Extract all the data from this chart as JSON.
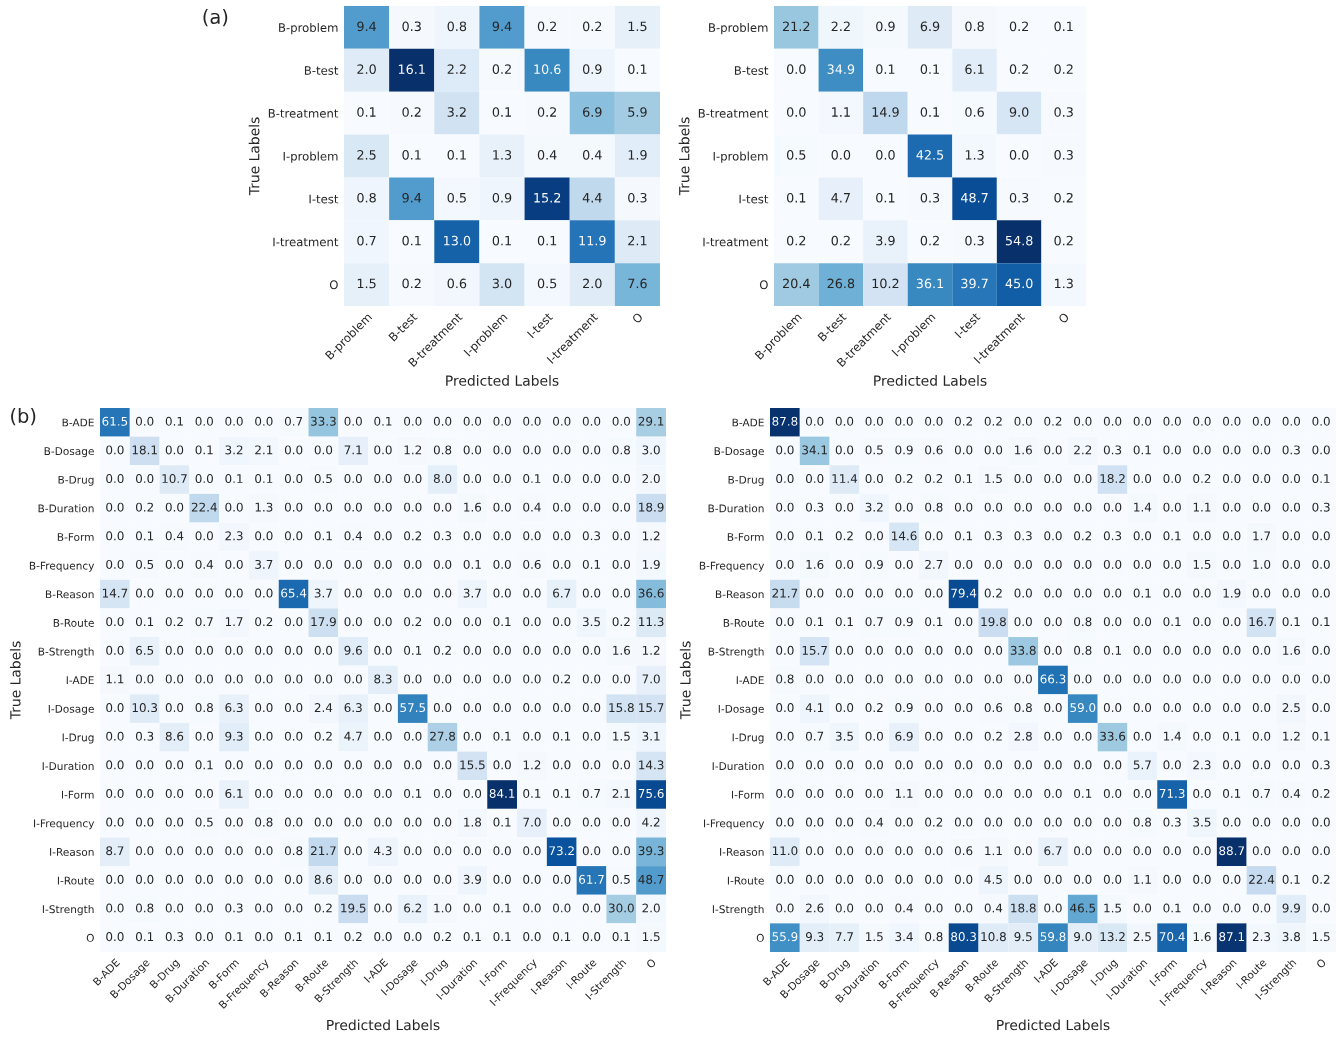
{
  "chart_data": [
    {
      "type": "heatmap",
      "title": "(a)",
      "xlabel": "Predicted Labels",
      "ylabel": "True Labels",
      "categories": [
        "B-problem",
        "B-test",
        "B-treatment",
        "I-problem",
        "I-test",
        "I-treatment",
        "O"
      ],
      "y_categories": [
        "B-problem",
        "B-test",
        "B-treatment",
        "I-problem",
        "I-test",
        "I-treatment",
        "O"
      ],
      "data_labels": true,
      "cell_labels": [
        [
          "9.4",
          "0.3",
          "0.8",
          "9.4",
          "0.2",
          "0.2",
          "1.5"
        ],
        [
          "2.0",
          "16.1",
          "2.2",
          "0.2",
          "10.6",
          "0.9",
          "0.1"
        ],
        [
          "0.1",
          "0.2",
          "3.2",
          "0.1",
          "0.2",
          "6.9",
          "5.9"
        ],
        [
          "2.5",
          "0.1",
          "0.1",
          "1.3",
          "0.4",
          "0.4",
          "1.9"
        ],
        [
          "0.8",
          "9.4",
          "0.5",
          "0.9",
          "15.2",
          "4.4",
          "0.3"
        ],
        [
          "0.7",
          "0.1",
          "13.0",
          "0.1",
          "0.1",
          "11.9",
          "2.1"
        ],
        [
          "1.5",
          "0.2",
          "0.6",
          "3.0",
          "0.5",
          "2.0",
          "7.6"
        ]
      ],
      "cells": [
        [
          9.4,
          0.3,
          0.8,
          9.4,
          0.2,
          0.2,
          1.5
        ],
        [
          2.0,
          16.1,
          2.2,
          0.2,
          10.6,
          0.9,
          0.1
        ],
        [
          0.1,
          0.2,
          3.2,
          0.1,
          0.2,
          6.9,
          5.9
        ],
        [
          2.5,
          0.1,
          0.1,
          1.3,
          0.4,
          0.4,
          1.9
        ],
        [
          0.8,
          9.4,
          0.5,
          0.9,
          15.2,
          4.4,
          0.3
        ],
        [
          0.7,
          0.1,
          13.0,
          0.1,
          0.1,
          11.9,
          2.1
        ],
        [
          1.5,
          0.2,
          0.6,
          3.0,
          0.5,
          2.0,
          7.6
        ]
      ]
    },
    {
      "type": "heatmap",
      "xlabel": "Predicted Labels",
      "ylabel": "True Labels",
      "categories": [
        "B-problem",
        "B-test",
        "B-treatment",
        "I-problem",
        "I-test",
        "I-treatment",
        "O"
      ],
      "y_categories": [
        "B-problem",
        "B-test",
        "B-treatment",
        "I-problem",
        "I-test",
        "I-treatment",
        "O"
      ],
      "data_labels": true,
      "cell_labels": [
        [
          "21.2",
          "2.2",
          "0.9",
          "6.9",
          "0.8",
          "0.2",
          "0.1"
        ],
        [
          "0.0",
          "34.9",
          "0.1",
          "0.1",
          "6.1",
          "0.2",
          "0.2"
        ],
        [
          "0.0",
          "1.1",
          "14.9",
          "0.1",
          "0.6",
          "9.0",
          "0.3"
        ],
        [
          "0.5",
          "0.0",
          "0.0",
          "42.5",
          "1.3",
          "0.0",
          "0.3"
        ],
        [
          "0.1",
          "4.7",
          "0.1",
          "0.3",
          "48.7",
          "0.3",
          "0.2"
        ],
        [
          "0.2",
          "0.2",
          "3.9",
          "0.2",
          "0.3",
          "54.8",
          "0.2"
        ],
        [
          "20.4",
          "26.8",
          "10.2",
          "36.1",
          "39.7",
          "45.0",
          "1.3"
        ]
      ],
      "cells": [
        [
          21.2,
          2.2,
          0.9,
          6.9,
          0.8,
          0.2,
          0.1
        ],
        [
          0.0,
          34.9,
          0.1,
          0.1,
          6.1,
          0.2,
          0.2
        ],
        [
          0.0,
          1.1,
          14.9,
          0.1,
          0.6,
          9.0,
          0.3
        ],
        [
          0.5,
          0.0,
          0.0,
          42.5,
          1.3,
          0.0,
          0.3
        ],
        [
          0.1,
          4.7,
          0.1,
          0.3,
          48.7,
          0.3,
          0.2
        ],
        [
          0.2,
          0.2,
          3.9,
          0.2,
          0.3,
          54.8,
          0.2
        ],
        [
          20.4,
          26.8,
          10.2,
          36.1,
          39.7,
          45.0,
          1.3
        ]
      ]
    },
    {
      "type": "heatmap",
      "title": "(b)",
      "xlabel": "Predicted Labels",
      "ylabel": "True Labels",
      "categories": [
        "B-ADE",
        "B-Dosage",
        "B-Drug",
        "B-Duration",
        "B-Form",
        "B-Frequency",
        "B-Reason",
        "B-Route",
        "B-Strength",
        "I-ADE",
        "I-Dosage",
        "I-Drug",
        "I-Duration",
        "I-Form",
        "I-Frequency",
        "I-Reason",
        "I-Route",
        "I-Strength",
        "O"
      ],
      "y_categories": [
        "B-ADE",
        "B-Dosage",
        "B-Drug",
        "B-Duration",
        "B-Form",
        "B-Frequency",
        "B-Reason",
        "B-Route",
        "B-Strength",
        "I-ADE",
        "I-Dosage",
        "I-Drug",
        "I-Duration",
        "I-Form",
        "I-Frequency",
        "I-Reason",
        "I-Route",
        "I-Strength",
        "O"
      ],
      "data_labels": true,
      "cell_labels": [
        [
          "61.5",
          "0.0",
          "0.1",
          "0.0",
          "0.0",
          "0.0",
          "0.7",
          "33.3",
          "0.0",
          "0.1",
          "0.0",
          "0.0",
          "0.0",
          "0.0",
          "0.0",
          "0.0",
          "0.0",
          "0.0",
          "29.1"
        ],
        [
          "0.0",
          "18.1",
          "0.0",
          "0.1",
          "3.2",
          "2.1",
          "0.0",
          "0.0",
          "7.1",
          "0.0",
          "1.2",
          "0.8",
          "0.0",
          "0.0",
          "0.0",
          "0.0",
          "0.0",
          "0.8",
          "3.0"
        ],
        [
          "0.0",
          "0.0",
          "10.7",
          "0.0",
          "0.1",
          "0.1",
          "0.0",
          "0.5",
          "0.0",
          "0.0",
          "0.0",
          "8.0",
          "0.0",
          "0.0",
          "0.1",
          "0.0",
          "0.0",
          "0.0",
          "2.0"
        ],
        [
          "0.0",
          "0.2",
          "0.0",
          "22.4",
          "0.0",
          "1.3",
          "0.0",
          "0.0",
          "0.0",
          "0.0",
          "0.0",
          "0.0",
          "1.6",
          "0.0",
          "0.4",
          "0.0",
          "0.0",
          "0.0",
          "18.9"
        ],
        [
          "0.0",
          "0.1",
          "0.4",
          "0.0",
          "2.3",
          "0.0",
          "0.0",
          "0.1",
          "0.4",
          "0.0",
          "0.2",
          "0.3",
          "0.0",
          "0.0",
          "0.0",
          "0.0",
          "0.3",
          "0.0",
          "1.2"
        ],
        [
          "0.0",
          "0.5",
          "0.0",
          "0.4",
          "0.0",
          "3.7",
          "0.0",
          "0.0",
          "0.0",
          "0.0",
          "0.0",
          "0.0",
          "0.1",
          "0.0",
          "0.6",
          "0.0",
          "0.1",
          "0.0",
          "1.9"
        ],
        [
          "14.7",
          "0.0",
          "0.0",
          "0.0",
          "0.0",
          "0.0",
          "65.4",
          "3.7",
          "0.0",
          "0.0",
          "0.0",
          "0.0",
          "3.7",
          "0.0",
          "0.0",
          "6.7",
          "0.0",
          "0.0",
          "36.6"
        ],
        [
          "0.0",
          "0.1",
          "0.2",
          "0.7",
          "1.7",
          "0.2",
          "0.0",
          "17.9",
          "0.0",
          "0.0",
          "0.2",
          "0.0",
          "0.0",
          "0.1",
          "0.0",
          "0.0",
          "3.5",
          "0.2",
          "11.3"
        ],
        [
          "0.0",
          "6.5",
          "0.0",
          "0.0",
          "0.0",
          "0.0",
          "0.0",
          "0.0",
          "9.6",
          "0.0",
          "0.1",
          "0.2",
          "0.0",
          "0.0",
          "0.0",
          "0.0",
          "0.0",
          "1.6",
          "1.2"
        ],
        [
          "1.1",
          "0.0",
          "0.0",
          "0.0",
          "0.0",
          "0.0",
          "0.0",
          "0.0",
          "0.0",
          "8.3",
          "0.0",
          "0.0",
          "0.0",
          "0.0",
          "0.0",
          "0.2",
          "0.0",
          "0.0",
          "7.0"
        ],
        [
          "0.0",
          "10.3",
          "0.0",
          "0.8",
          "6.3",
          "0.0",
          "0.0",
          "2.4",
          "6.3",
          "0.0",
          "57.5",
          "0.0",
          "0.0",
          "0.0",
          "0.0",
          "0.0",
          "0.0",
          "15.8",
          "15.7"
        ],
        [
          "0.0",
          "0.3",
          "8.6",
          "0.0",
          "9.3",
          "0.0",
          "0.0",
          "0.2",
          "4.7",
          "0.0",
          "0.0",
          "27.8",
          "0.0",
          "0.1",
          "0.0",
          "0.1",
          "0.0",
          "1.5",
          "3.1"
        ],
        [
          "0.0",
          "0.0",
          "0.0",
          "0.1",
          "0.0",
          "0.0",
          "0.0",
          "0.0",
          "0.0",
          "0.0",
          "0.0",
          "0.0",
          "15.5",
          "0.0",
          "1.2",
          "0.0",
          "0.0",
          "0.0",
          "14.3"
        ],
        [
          "0.0",
          "0.0",
          "0.0",
          "0.0",
          "6.1",
          "0.0",
          "0.0",
          "0.0",
          "0.0",
          "0.0",
          "0.1",
          "0.0",
          "0.0",
          "84.1",
          "0.1",
          "0.1",
          "0.7",
          "2.1",
          "75.6"
        ],
        [
          "0.0",
          "0.0",
          "0.0",
          "0.5",
          "0.0",
          "0.8",
          "0.0",
          "0.0",
          "0.0",
          "0.0",
          "0.0",
          "0.0",
          "1.8",
          "0.1",
          "7.0",
          "0.0",
          "0.0",
          "0.0",
          "4.2"
        ],
        [
          "8.7",
          "0.0",
          "0.0",
          "0.0",
          "0.0",
          "0.0",
          "0.8",
          "21.7",
          "0.0",
          "4.3",
          "0.0",
          "0.0",
          "0.0",
          "0.0",
          "0.0",
          "73.2",
          "0.0",
          "0.0",
          "39.3"
        ],
        [
          "0.0",
          "0.0",
          "0.0",
          "0.0",
          "0.0",
          "0.0",
          "0.0",
          "8.6",
          "0.0",
          "0.0",
          "0.0",
          "0.0",
          "3.9",
          "0.0",
          "0.0",
          "0.0",
          "61.7",
          "0.5",
          "48.7"
        ],
        [
          "0.0",
          "0.8",
          "0.0",
          "0.0",
          "0.3",
          "0.0",
          "0.0",
          "0.2",
          "19.5",
          "0.0",
          "6.2",
          "1.0",
          "0.0",
          "0.1",
          "0.0",
          "0.0",
          "0.0",
          "30.0",
          "2.0"
        ],
        [
          "0.0",
          "0.1",
          "0.3",
          "0.0",
          "0.1",
          "0.0",
          "0.1",
          "0.1",
          "0.2",
          "0.0",
          "0.0",
          "0.2",
          "0.1",
          "0.1",
          "0.0",
          "0.1",
          "0.0",
          "0.1",
          "1.5"
        ]
      ],
      "cells": [
        [
          61.5,
          0.0,
          0.1,
          0.0,
          0.0,
          0.0,
          0.7,
          33.3,
          0.0,
          0.1,
          0.0,
          0.0,
          0.0,
          0.0,
          0.0,
          0.0,
          0.0,
          0.0,
          29.1
        ],
        [
          0.0,
          18.1,
          0.0,
          0.1,
          3.2,
          2.1,
          0.0,
          0.0,
          7.1,
          0.0,
          1.2,
          0.8,
          0.0,
          0.0,
          0.0,
          0.0,
          0.0,
          0.8,
          3.0
        ],
        [
          0.0,
          0.0,
          10.7,
          0.0,
          0.1,
          0.1,
          0.0,
          0.5,
          0.0,
          0.0,
          0.0,
          8.0,
          0.0,
          0.0,
          0.1,
          0.0,
          0.0,
          0.0,
          2.0
        ],
        [
          0.0,
          0.2,
          0.0,
          22.4,
          0.0,
          1.3,
          0.0,
          0.0,
          0.0,
          0.0,
          0.0,
          0.0,
          1.6,
          0.0,
          0.4,
          0.0,
          0.0,
          0.0,
          18.9
        ],
        [
          0.0,
          0.1,
          0.4,
          0.0,
          2.3,
          0.0,
          0.0,
          0.1,
          0.4,
          0.0,
          0.2,
          0.3,
          0.0,
          0.0,
          0.0,
          0.0,
          0.3,
          0.0,
          1.2
        ],
        [
          0.0,
          0.5,
          0.0,
          0.4,
          0.0,
          3.7,
          0.0,
          0.0,
          0.0,
          0.0,
          0.0,
          0.0,
          0.1,
          0.0,
          0.6,
          0.0,
          0.1,
          0.0,
          1.9
        ],
        [
          14.7,
          0.0,
          0.0,
          0.0,
          0.0,
          0.0,
          65.4,
          3.7,
          0.0,
          0.0,
          0.0,
          0.0,
          3.7,
          0.0,
          0.0,
          6.7,
          0.0,
          0.0,
          36.6
        ],
        [
          0.0,
          0.1,
          0.2,
          0.7,
          1.7,
          0.2,
          0.0,
          17.9,
          0.0,
          0.0,
          0.2,
          0.0,
          0.0,
          0.1,
          0.0,
          0.0,
          3.5,
          0.2,
          11.3
        ],
        [
          0.0,
          6.5,
          0.0,
          0.0,
          0.0,
          0.0,
          0.0,
          0.0,
          9.6,
          0.0,
          0.1,
          0.2,
          0.0,
          0.0,
          0.0,
          0.0,
          0.0,
          1.6,
          1.2
        ],
        [
          1.1,
          0.0,
          0.0,
          0.0,
          0.0,
          0.0,
          0.0,
          0.0,
          0.0,
          8.3,
          0.0,
          0.0,
          0.0,
          0.0,
          0.0,
          0.2,
          0.0,
          0.0,
          7.0
        ],
        [
          0.0,
          10.3,
          0.0,
          0.8,
          6.3,
          0.0,
          0.0,
          2.4,
          6.3,
          0.0,
          57.5,
          0.0,
          0.0,
          0.0,
          0.0,
          0.0,
          0.0,
          15.8,
          15.7
        ],
        [
          0.0,
          0.3,
          8.6,
          0.0,
          9.3,
          0.0,
          0.0,
          0.2,
          4.7,
          0.0,
          0.0,
          27.8,
          0.0,
          0.1,
          0.0,
          0.1,
          0.0,
          1.5,
          3.1
        ],
        [
          0.0,
          0.0,
          0.0,
          0.1,
          0.0,
          0.0,
          0.0,
          0.0,
          0.0,
          0.0,
          0.0,
          0.0,
          15.5,
          0.0,
          1.2,
          0.0,
          0.0,
          0.0,
          14.3
        ],
        [
          0.0,
          0.0,
          0.0,
          0.0,
          6.1,
          0.0,
          0.0,
          0.0,
          0.0,
          0.0,
          0.1,
          0.0,
          0.0,
          84.1,
          0.1,
          0.1,
          0.7,
          2.1,
          75.6
        ],
        [
          0.0,
          0.0,
          0.0,
          0.5,
          0.0,
          0.8,
          0.0,
          0.0,
          0.0,
          0.0,
          0.0,
          0.0,
          1.8,
          0.1,
          7.0,
          0.0,
          0.0,
          0.0,
          4.2
        ],
        [
          8.7,
          0.0,
          0.0,
          0.0,
          0.0,
          0.0,
          0.8,
          21.7,
          0.0,
          4.3,
          0.0,
          0.0,
          0.0,
          0.0,
          0.0,
          73.2,
          0.0,
          0.0,
          39.3
        ],
        [
          0.0,
          0.0,
          0.0,
          0.0,
          0.0,
          0.0,
          0.0,
          8.6,
          0.0,
          0.0,
          0.0,
          0.0,
          3.9,
          0.0,
          0.0,
          0.0,
          61.7,
          0.5,
          48.7
        ],
        [
          0.0,
          0.8,
          0.0,
          0.0,
          0.3,
          0.0,
          0.0,
          0.2,
          19.5,
          0.0,
          6.2,
          1.0,
          0.0,
          0.1,
          0.0,
          0.0,
          0.0,
          30.0,
          2.0
        ],
        [
          0.0,
          0.1,
          0.3,
          0.0,
          0.1,
          0.0,
          0.1,
          0.1,
          0.2,
          0.0,
          0.0,
          0.2,
          0.1,
          0.1,
          0.0,
          0.1,
          0.0,
          0.1,
          1.5
        ]
      ]
    },
    {
      "type": "heatmap",
      "xlabel": "Predicted Labels",
      "ylabel": "True Labels",
      "categories": [
        "B-ADE",
        "B-Dosage",
        "B-Drug",
        "B-Duration",
        "B-Form",
        "B-Frequency",
        "B-Reason",
        "B-Route",
        "B-Strength",
        "I-ADE",
        "I-Dosage",
        "I-Drug",
        "I-Duration",
        "I-Form",
        "I-Frequency",
        "I-Reason",
        "I-Route",
        "I-Strength",
        "O"
      ],
      "y_categories": [
        "B-ADE",
        "B-Dosage",
        "B-Drug",
        "B-Duration",
        "B-Form",
        "B-Frequency",
        "B-Reason",
        "B-Route",
        "B-Strength",
        "I-ADE",
        "I-Dosage",
        "I-Drug",
        "I-Duration",
        "I-Form",
        "I-Frequency",
        "I-Reason",
        "I-Route",
        "I-Strength",
        "O"
      ],
      "data_labels": true,
      "cell_labels": [
        [
          "87.8",
          "0.0",
          "0.0",
          "0.0",
          "0.0",
          "0.0",
          "0.2",
          "0.2",
          "0.0",
          "0.2",
          "0.0",
          "0.0",
          "0.0",
          "0.0",
          "0.0",
          "0.0",
          "0.0",
          "0.0",
          "0.0"
        ],
        [
          "0.0",
          "34.1",
          "0.0",
          "0.5",
          "0.9",
          "0.6",
          "0.0",
          "0.0",
          "1.6",
          "0.0",
          "2.2",
          "0.3",
          "0.1",
          "0.0",
          "0.0",
          "0.0",
          "0.0",
          "0.3",
          "0.0"
        ],
        [
          "0.0",
          "0.0",
          "11.4",
          "0.0",
          "0.2",
          "0.2",
          "0.1",
          "1.5",
          "0.0",
          "0.0",
          "0.0",
          "18.2",
          "0.0",
          "0.0",
          "0.2",
          "0.0",
          "0.0",
          "0.0",
          "0.1"
        ],
        [
          "0.0",
          "0.3",
          "0.0",
          "3.2",
          "0.0",
          "0.8",
          "0.0",
          "0.0",
          "0.0",
          "0.0",
          "0.0",
          "0.0",
          "1.4",
          "0.0",
          "1.1",
          "0.0",
          "0.0",
          "0.0",
          "0.3"
        ],
        [
          "0.0",
          "0.1",
          "0.2",
          "0.0",
          "14.6",
          "0.0",
          "0.1",
          "0.3",
          "0.3",
          "0.0",
          "0.2",
          "0.3",
          "0.0",
          "0.1",
          "0.0",
          "0.0",
          "1.7",
          "0.0",
          "0.0"
        ],
        [
          "0.0",
          "1.6",
          "0.0",
          "0.9",
          "0.0",
          "2.7",
          "0.0",
          "0.0",
          "0.0",
          "0.0",
          "0.0",
          "0.0",
          "0.0",
          "0.0",
          "1.5",
          "0.0",
          "1.0",
          "0.0",
          "0.0"
        ],
        [
          "21.7",
          "0.0",
          "0.0",
          "0.0",
          "0.0",
          "0.0",
          "79.4",
          "0.2",
          "0.0",
          "0.0",
          "0.0",
          "0.0",
          "0.1",
          "0.0",
          "0.0",
          "1.9",
          "0.0",
          "0.0",
          "0.0"
        ],
        [
          "0.0",
          "0.1",
          "0.1",
          "0.7",
          "0.9",
          "0.1",
          "0.0",
          "19.8",
          "0.0",
          "0.0",
          "0.8",
          "0.0",
          "0.0",
          "0.1",
          "0.0",
          "0.0",
          "16.7",
          "0.1",
          "0.1"
        ],
        [
          "0.0",
          "15.7",
          "0.0",
          "0.0",
          "0.0",
          "0.0",
          "0.0",
          "0.0",
          "33.8",
          "0.0",
          "0.8",
          "0.1",
          "0.0",
          "0.0",
          "0.0",
          "0.0",
          "0.0",
          "1.6",
          "0.0"
        ],
        [
          "0.8",
          "0.0",
          "0.0",
          "0.0",
          "0.0",
          "0.0",
          "0.0",
          "0.0",
          "0.0",
          "66.3",
          "0.0",
          "0.0",
          "0.0",
          "0.0",
          "0.0",
          "0.0",
          "0.0",
          "0.0",
          "0.0"
        ],
        [
          "0.0",
          "4.1",
          "0.0",
          "0.2",
          "0.9",
          "0.0",
          "0.0",
          "0.6",
          "0.8",
          "0.0",
          "59.0",
          "0.0",
          "0.0",
          "0.0",
          "0.0",
          "0.0",
          "0.0",
          "2.5",
          "0.0"
        ],
        [
          "0.0",
          "0.7",
          "3.5",
          "0.0",
          "6.9",
          "0.0",
          "0.0",
          "0.2",
          "2.8",
          "0.0",
          "0.0",
          "33.6",
          "0.0",
          "1.4",
          "0.0",
          "0.1",
          "0.0",
          "1.2",
          "0.1"
        ],
        [
          "0.0",
          "0.0",
          "0.0",
          "0.0",
          "0.0",
          "0.0",
          "0.0",
          "0.0",
          "0.0",
          "0.0",
          "0.0",
          "0.0",
          "5.7",
          "0.0",
          "2.3",
          "0.0",
          "0.0",
          "0.0",
          "0.3"
        ],
        [
          "0.0",
          "0.0",
          "0.0",
          "0.0",
          "1.1",
          "0.0",
          "0.0",
          "0.0",
          "0.0",
          "0.0",
          "0.1",
          "0.0",
          "0.0",
          "71.3",
          "0.0",
          "0.1",
          "0.7",
          "0.4",
          "0.2"
        ],
        [
          "0.0",
          "0.0",
          "0.0",
          "0.4",
          "0.0",
          "0.2",
          "0.0",
          "0.0",
          "0.0",
          "0.0",
          "0.0",
          "0.0",
          "0.8",
          "0.3",
          "3.5",
          "0.0",
          "0.0",
          "0.0",
          "0.0"
        ],
        [
          "11.0",
          "0.0",
          "0.0",
          "0.0",
          "0.0",
          "0.0",
          "0.6",
          "1.1",
          "0.0",
          "6.7",
          "0.0",
          "0.0",
          "0.0",
          "0.0",
          "0.0",
          "88.7",
          "0.0",
          "0.0",
          "0.0"
        ],
        [
          "0.0",
          "0.0",
          "0.0",
          "0.0",
          "0.0",
          "0.0",
          "0.0",
          "4.5",
          "0.0",
          "0.0",
          "0.0",
          "0.0",
          "1.1",
          "0.0",
          "0.0",
          "0.0",
          "22.4",
          "0.1",
          "0.2"
        ],
        [
          "0.0",
          "2.6",
          "0.0",
          "0.0",
          "0.4",
          "0.0",
          "0.0",
          "0.4",
          "18.8",
          "0.0",
          "46.5",
          "1.5",
          "0.0",
          "0.1",
          "0.0",
          "0.0",
          "0.0",
          "9.9",
          "0.0"
        ],
        [
          "55.9",
          "9.3",
          "7.7",
          "1.5",
          "3.4",
          "0.8",
          "80.3",
          "10.8",
          "9.5",
          "59.8",
          "9.0",
          "13.2",
          "2.5",
          "70.4",
          "1.6",
          "87.1",
          "2.3",
          "3.8",
          "1.5"
        ]
      ],
      "cells": [
        [
          87.8,
          0.0,
          0.0,
          0.0,
          0.0,
          0.0,
          0.2,
          0.2,
          0.0,
          0.2,
          0.0,
          0.0,
          0.0,
          0.0,
          0.0,
          0.0,
          0.0,
          0.0,
          0.0
        ],
        [
          0.0,
          34.1,
          0.0,
          0.5,
          0.9,
          0.6,
          0.0,
          0.0,
          1.6,
          0.0,
          2.2,
          0.3,
          0.1,
          0.0,
          0.0,
          0.0,
          0.0,
          0.3,
          0.0
        ],
        [
          0.0,
          0.0,
          11.4,
          0.0,
          0.2,
          0.2,
          0.1,
          1.5,
          0.0,
          0.0,
          0.0,
          18.2,
          0.0,
          0.0,
          0.2,
          0.0,
          0.0,
          0.0,
          0.1
        ],
        [
          0.0,
          0.3,
          0.0,
          3.2,
          0.0,
          0.8,
          0.0,
          0.0,
          0.0,
          0.0,
          0.0,
          0.0,
          1.4,
          0.0,
          1.1,
          0.0,
          0.0,
          0.0,
          0.3
        ],
        [
          0.0,
          0.1,
          0.2,
          0.0,
          14.6,
          0.0,
          0.1,
          0.3,
          0.3,
          0.0,
          0.2,
          0.3,
          0.0,
          0.1,
          0.0,
          0.0,
          1.7,
          0.0,
          0.0
        ],
        [
          0.0,
          1.6,
          0.0,
          0.9,
          0.0,
          2.7,
          0.0,
          0.0,
          0.0,
          0.0,
          0.0,
          0.0,
          0.0,
          0.0,
          1.5,
          0.0,
          1.0,
          0.0,
          0.0
        ],
        [
          21.7,
          0.0,
          0.0,
          0.0,
          0.0,
          0.0,
          79.4,
          0.2,
          0.0,
          0.0,
          0.0,
          0.0,
          0.1,
          0.0,
          0.0,
          1.9,
          0.0,
          0.0,
          0.0
        ],
        [
          0.0,
          0.1,
          0.1,
          0.7,
          0.9,
          0.1,
          0.0,
          19.8,
          0.0,
          0.0,
          0.8,
          0.0,
          0.0,
          0.1,
          0.0,
          0.0,
          16.7,
          0.1,
          0.1
        ],
        [
          0.0,
          15.7,
          0.0,
          0.0,
          0.0,
          0.0,
          0.0,
          0.0,
          33.8,
          0.0,
          0.8,
          0.1,
          0.0,
          0.0,
          0.0,
          0.0,
          0.0,
          1.6,
          0.0
        ],
        [
          0.8,
          0.0,
          0.0,
          0.0,
          0.0,
          0.0,
          0.0,
          0.0,
          0.0,
          66.3,
          0.0,
          0.0,
          0.0,
          0.0,
          0.0,
          0.0,
          0.0,
          0.0,
          0.0
        ],
        [
          0.0,
          4.1,
          0.0,
          0.2,
          0.9,
          0.0,
          0.0,
          0.6,
          0.8,
          0.0,
          59.0,
          0.0,
          0.0,
          0.0,
          0.0,
          0.0,
          0.0,
          2.5,
          0.0
        ],
        [
          0.0,
          0.7,
          3.5,
          0.0,
          6.9,
          0.0,
          0.0,
          0.2,
          2.8,
          0.0,
          0.0,
          33.6,
          0.0,
          1.4,
          0.0,
          0.1,
          0.0,
          1.2,
          0.1
        ],
        [
          0.0,
          0.0,
          0.0,
          0.0,
          0.0,
          0.0,
          0.0,
          0.0,
          0.0,
          0.0,
          0.0,
          0.0,
          5.7,
          0.0,
          2.3,
          0.0,
          0.0,
          0.0,
          0.3
        ],
        [
          0.0,
          0.0,
          0.0,
          0.0,
          1.1,
          0.0,
          0.0,
          0.0,
          0.0,
          0.0,
          0.1,
          0.0,
          0.0,
          71.3,
          0.0,
          0.1,
          0.7,
          0.4,
          0.2
        ],
        [
          0.0,
          0.0,
          0.0,
          0.4,
          0.0,
          0.2,
          0.0,
          0.0,
          0.0,
          0.0,
          0.0,
          0.0,
          0.8,
          0.3,
          3.5,
          0.0,
          0.0,
          0.0,
          0.0
        ],
        [
          11.0,
          0.0,
          0.0,
          0.0,
          0.0,
          0.0,
          0.6,
          1.1,
          0.0,
          6.7,
          0.0,
          0.0,
          0.0,
          0.0,
          0.0,
          88.7,
          0.0,
          0.0,
          0.0
        ],
        [
          0.0,
          0.0,
          0.0,
          0.0,
          0.0,
          0.0,
          0.0,
          4.5,
          0.0,
          0.0,
          0.0,
          0.0,
          1.1,
          0.0,
          0.0,
          0.0,
          22.4,
          0.1,
          0.2
        ],
        [
          0.0,
          2.6,
          0.0,
          0.0,
          0.4,
          0.0,
          0.0,
          0.4,
          18.8,
          0.0,
          46.5,
          1.5,
          0.0,
          0.1,
          0.0,
          0.0,
          0.0,
          9.9,
          0.0
        ],
        [
          55.9,
          9.3,
          7.7,
          1.5,
          3.4,
          0.8,
          80.3,
          10.8,
          9.5,
          59.8,
          9.0,
          13.2,
          2.5,
          70.4,
          1.6,
          87.1,
          2.3,
          3.8,
          1.5
        ]
      ]
    }
  ]
}
